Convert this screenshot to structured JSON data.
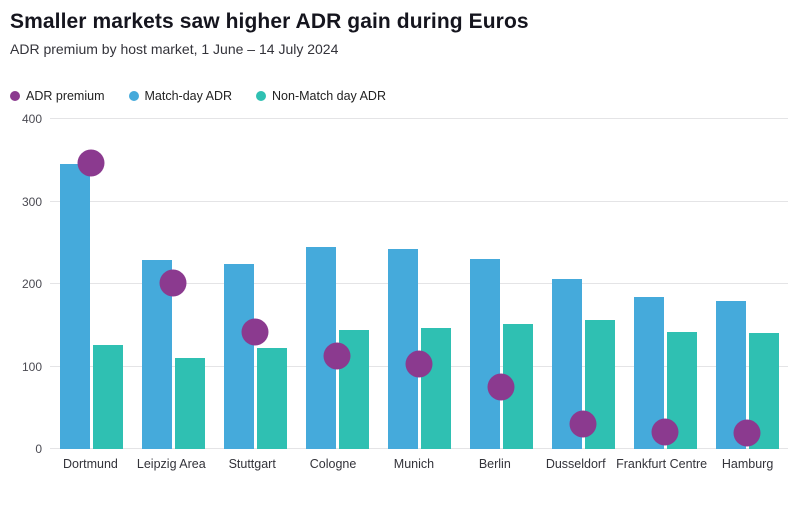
{
  "header": {
    "title": "Smaller markets saw higher ADR gain during Euros",
    "subtitle": "ADR premium by host market, 1 June – 14 July 2024"
  },
  "legend": {
    "items": [
      {
        "label": "ADR premium",
        "color": "#8b3a8f"
      },
      {
        "label": "Match-day ADR",
        "color": "#45aadb"
      },
      {
        "label": "Non-Match day ADR",
        "color": "#2fc0b2"
      }
    ]
  },
  "chart_data": {
    "type": "bar",
    "title": "ADR premium by host market, 1 June – 14 July 2024",
    "categories": [
      "Dortmund",
      "Leipzig Area",
      "Stuttgart",
      "Cologne",
      "Munich",
      "Berlin",
      "Dusseldorf",
      "Frankfurt Centre",
      "Hamburg"
    ],
    "series": [
      {
        "name": "Match-day ADR",
        "color": "#45aadb",
        "values": [
          345,
          229,
          224,
          245,
          243,
          230,
          206,
          184,
          180
        ]
      },
      {
        "name": "Non-Match day ADR",
        "color": "#2fc0b2",
        "values": [
          126,
          110,
          123,
          144,
          147,
          152,
          156,
          142,
          141
        ]
      }
    ],
    "points": {
      "name": "ADR premium",
      "color": "#8b3a8f",
      "values": [
        347,
        201,
        142,
        113,
        103,
        75,
        30,
        21,
        19
      ]
    },
    "xlabel": "",
    "ylabel": "",
    "ylim": [
      0,
      400
    ],
    "yticks": [
      0,
      100,
      200,
      300,
      400
    ],
    "grid": true,
    "legend_position": "top-left"
  }
}
